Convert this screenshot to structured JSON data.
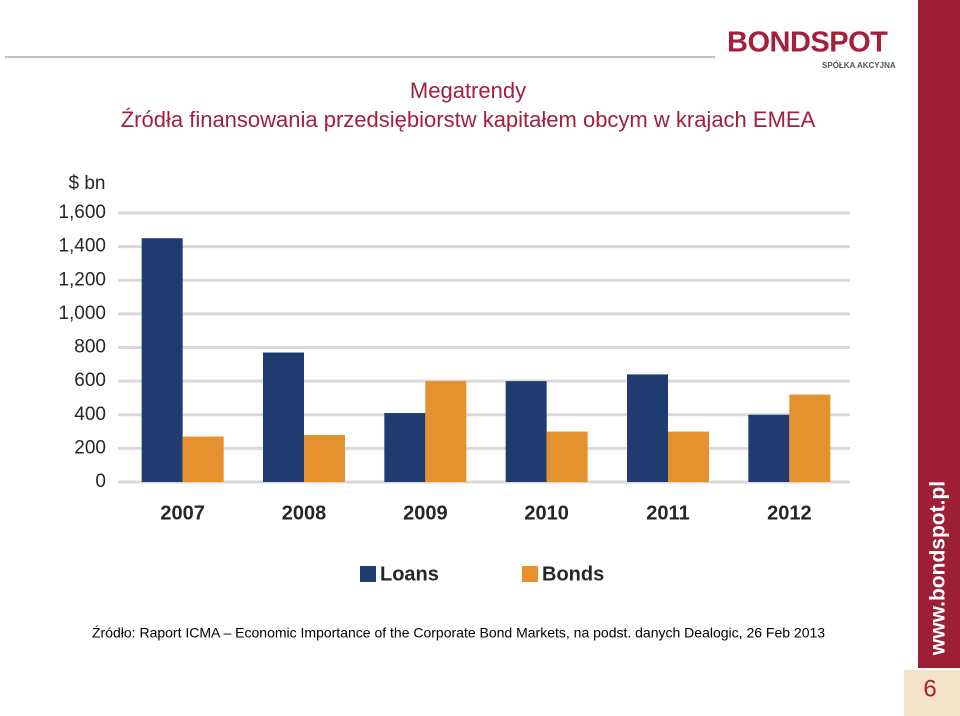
{
  "chart_data": {
    "type": "bar",
    "title": "Megatrendy",
    "subtitle": "Źródła finansowania przedsiębiorstw kapitałem obcym w krajach EMEA",
    "y_label": "$ bn",
    "categories": [
      "2007",
      "2008",
      "2009",
      "2010",
      "2011",
      "2012"
    ],
    "series": [
      {
        "name": "Loans",
        "color": "#1f3b6f",
        "values": [
          1450,
          770,
          410,
          600,
          640,
          400
        ]
      },
      {
        "name": "Bonds",
        "color": "#e5912d",
        "values": [
          270,
          280,
          600,
          300,
          300,
          520
        ]
      }
    ],
    "ylim": [
      0,
      1600
    ],
    "yticks": [
      0,
      200,
      400,
      600,
      800,
      {
        "value": 1000,
        "label": "1,000"
      },
      {
        "value": 1200,
        "label": "1,200"
      },
      {
        "value": 1400,
        "label": "1,400"
      },
      {
        "value": 1600,
        "label": "1,600"
      }
    ],
    "grid": true,
    "legend": "bottom"
  },
  "source": "Źródło: Raport ICMA – Economic Importance of the Corporate Bond Markets, na podst. danych Dealogic, 26 Feb 2013",
  "logo": {
    "name": "BONDSPOT",
    "tagline": "SPÓŁKA AKCYJNA"
  },
  "website": "www.bondspot.pl",
  "page_number": "6"
}
